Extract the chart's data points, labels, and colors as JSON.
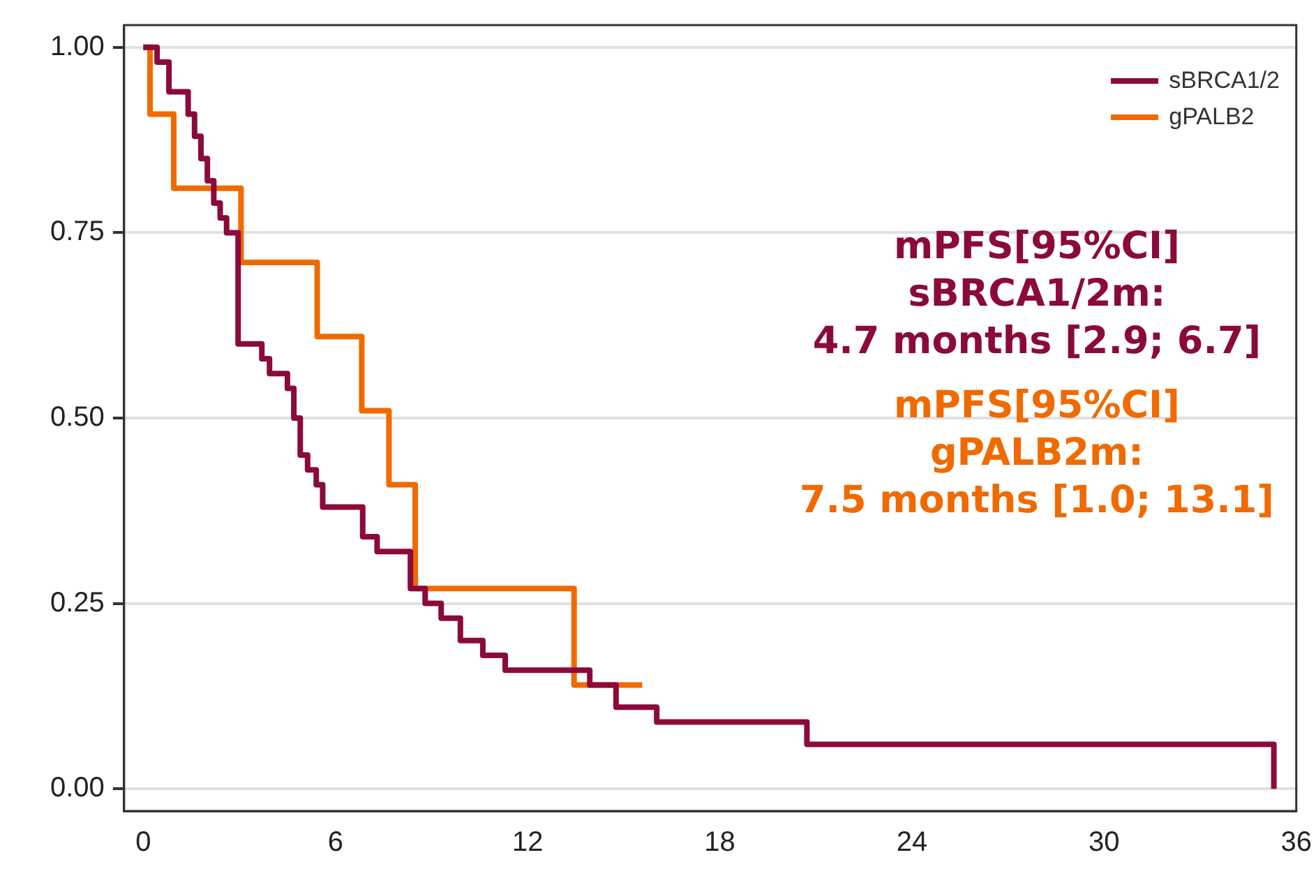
{
  "chart_data": {
    "type": "step",
    "xlim": [
      -0.6,
      36
    ],
    "xticks": [
      0,
      6,
      12,
      18,
      24,
      30,
      36
    ],
    "ylim": [
      -0.03,
      1.03
    ],
    "yticks": [
      {
        "value": 0,
        "label": "0.00"
      },
      {
        "value": 0.25,
        "label": "0.25"
      },
      {
        "value": 0.5,
        "label": "0.50"
      },
      {
        "value": 0.75,
        "label": "0.75"
      },
      {
        "value": 1,
        "label": "1.00"
      }
    ],
    "grid": "y",
    "legend": "top right",
    "line_style": "solid",
    "marker": "none",
    "series": [
      {
        "name": "sBRCA1/2",
        "color": "#8b0a3c",
        "x": [
          0,
          0.43,
          0.8,
          1.4,
          1.6,
          1.8,
          2.0,
          2.2,
          2.4,
          2.6,
          2.96,
          3.7,
          3.94,
          4.5,
          4.7,
          4.9,
          5.13,
          5.4,
          5.6,
          6.85,
          7.3,
          8.34,
          8.8,
          9.3,
          9.9,
          10.6,
          11.3,
          13.94,
          14.76,
          16.03,
          20.72,
          35.3
        ],
        "values": [
          1,
          0.98,
          0.94,
          0.91,
          0.88,
          0.85,
          0.82,
          0.79,
          0.77,
          0.75,
          0.6,
          0.58,
          0.56,
          0.54,
          0.5,
          0.45,
          0.43,
          0.41,
          0.38,
          0.34,
          0.32,
          0.27,
          0.25,
          0.23,
          0.2,
          0.18,
          0.16,
          0.14,
          0.11,
          0.09,
          0.06,
          0
        ]
      },
      {
        "name": "gPALB2",
        "color": "#f06a00",
        "x": [
          0,
          0.21,
          0.95,
          3.05,
          5.43,
          6.82,
          7.67,
          8.49,
          13.45,
          15.58
        ],
        "values": [
          1,
          0.91,
          0.81,
          0.71,
          0.61,
          0.51,
          0.41,
          0.27,
          0.14,
          0.14
        ]
      }
    ],
    "annotations": [
      "mPFS[95%CI]\nsBRCA1/2m:\n4.7 months [2.9; 6.7]",
      "mPFS[95%CI]\ngPALB2m:\n7.5 months [1.0; 13.1]"
    ]
  }
}
